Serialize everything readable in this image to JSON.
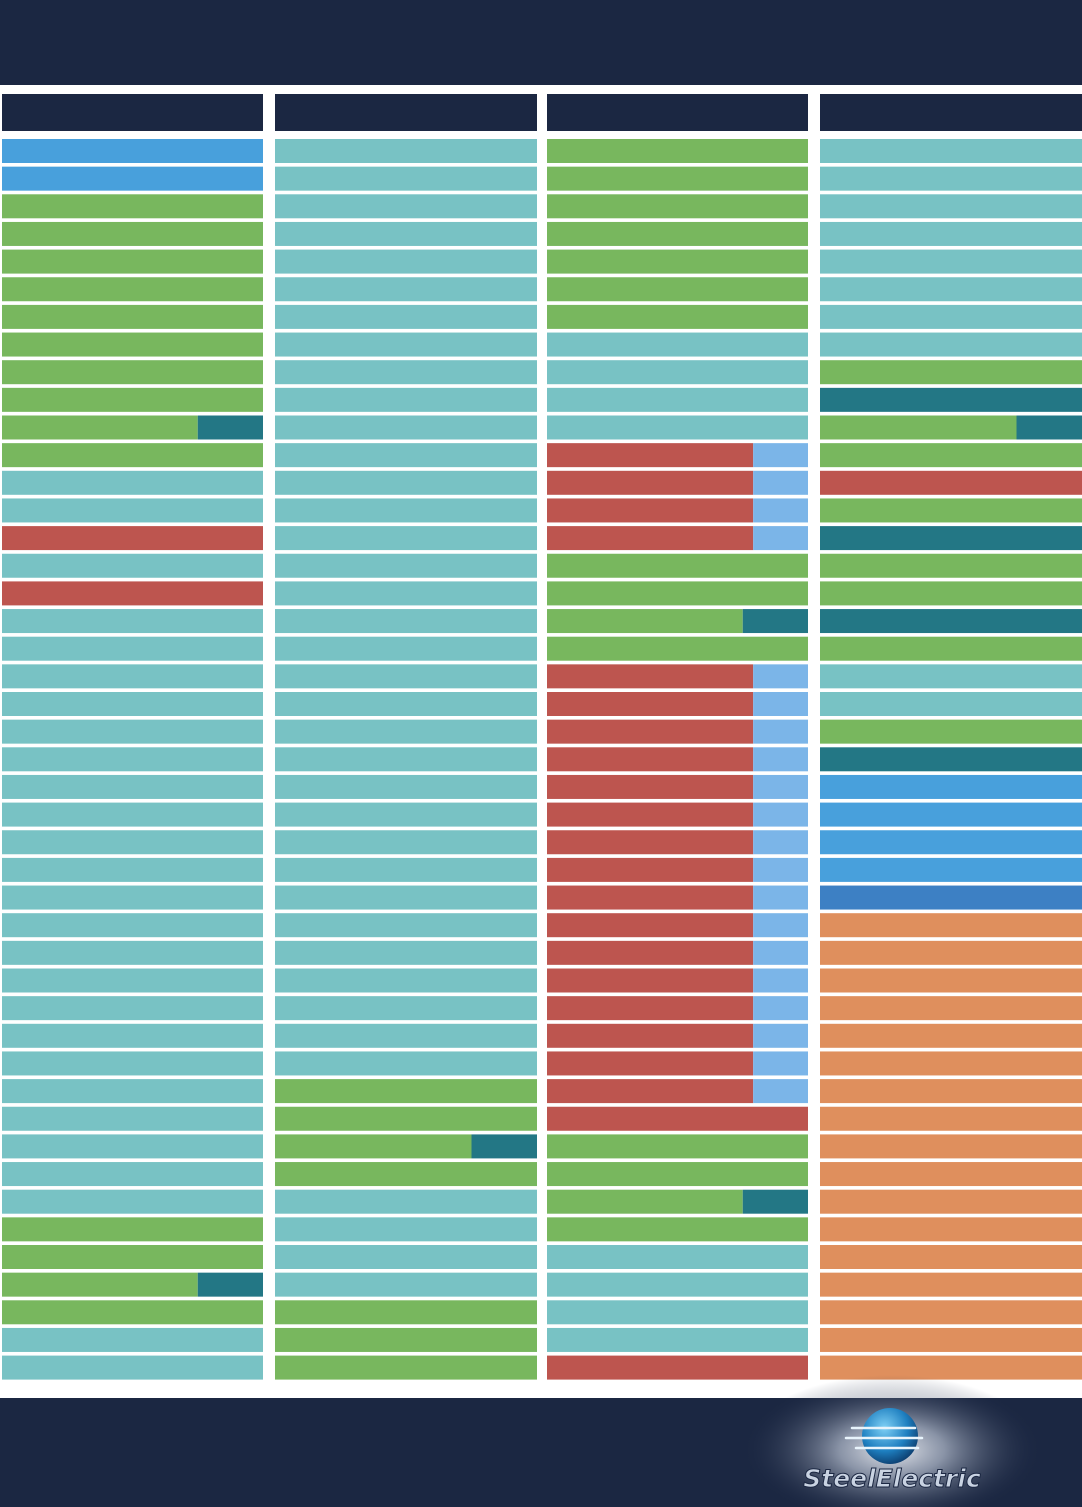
{
  "logo": {
    "name": "SteelElectric"
  }
}
